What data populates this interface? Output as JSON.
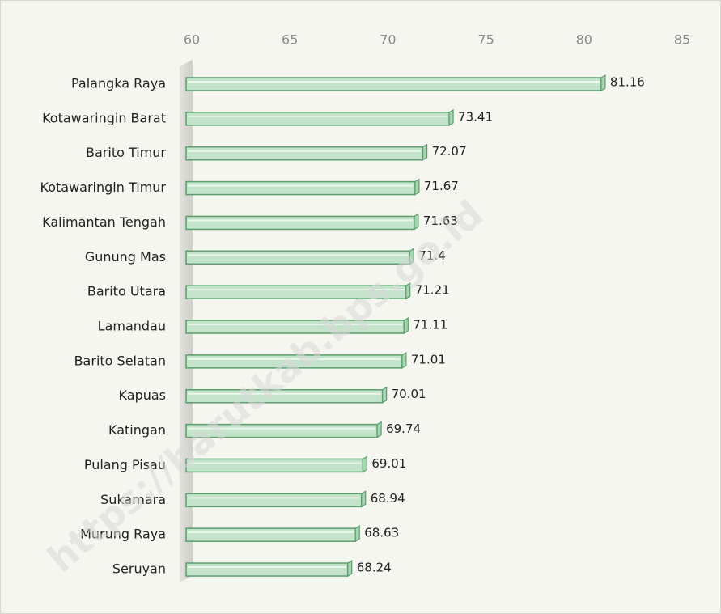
{
  "chart_data": {
    "type": "bar",
    "orientation": "horizontal",
    "categories": [
      "Palangka Raya",
      "Kotawaringin Barat",
      "Barito Timur",
      "Kotawaringin Timur",
      "Kalimantan Tengah",
      "Gunung Mas",
      "Barito Utara",
      "Lamandau",
      "Barito Selatan",
      "Kapuas",
      "Katingan",
      "Pulang Pisau",
      "Sukamara",
      "Murung Raya",
      "Seruyan"
    ],
    "values": [
      81.16,
      73.41,
      72.07,
      71.67,
      71.63,
      71.4,
      71.21,
      71.11,
      71.01,
      70.01,
      69.74,
      69.01,
      68.94,
      68.63,
      68.24
    ],
    "color": "#c3e3ca",
    "xlim": [
      60,
      85
    ],
    "xticks": [
      60,
      65,
      70,
      75,
      80,
      85
    ],
    "grid": false,
    "watermark": "https://barutkab.bps.go.id"
  }
}
